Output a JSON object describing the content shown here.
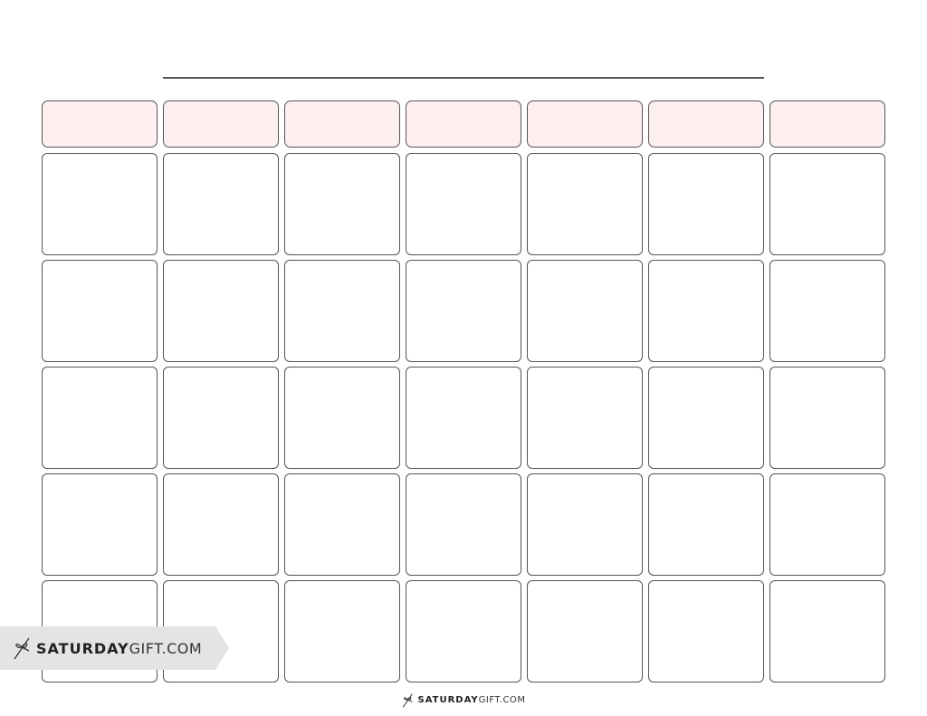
{
  "brand": {
    "bold": "SATURDAY",
    "light": "GIFT.COM",
    "icon": "bow-icon"
  },
  "colors": {
    "header_fill": "#fdeef0",
    "border": "#555555",
    "badge": "#e4e4e4"
  },
  "calendar": {
    "columns": 7,
    "week_rows": 5
  }
}
